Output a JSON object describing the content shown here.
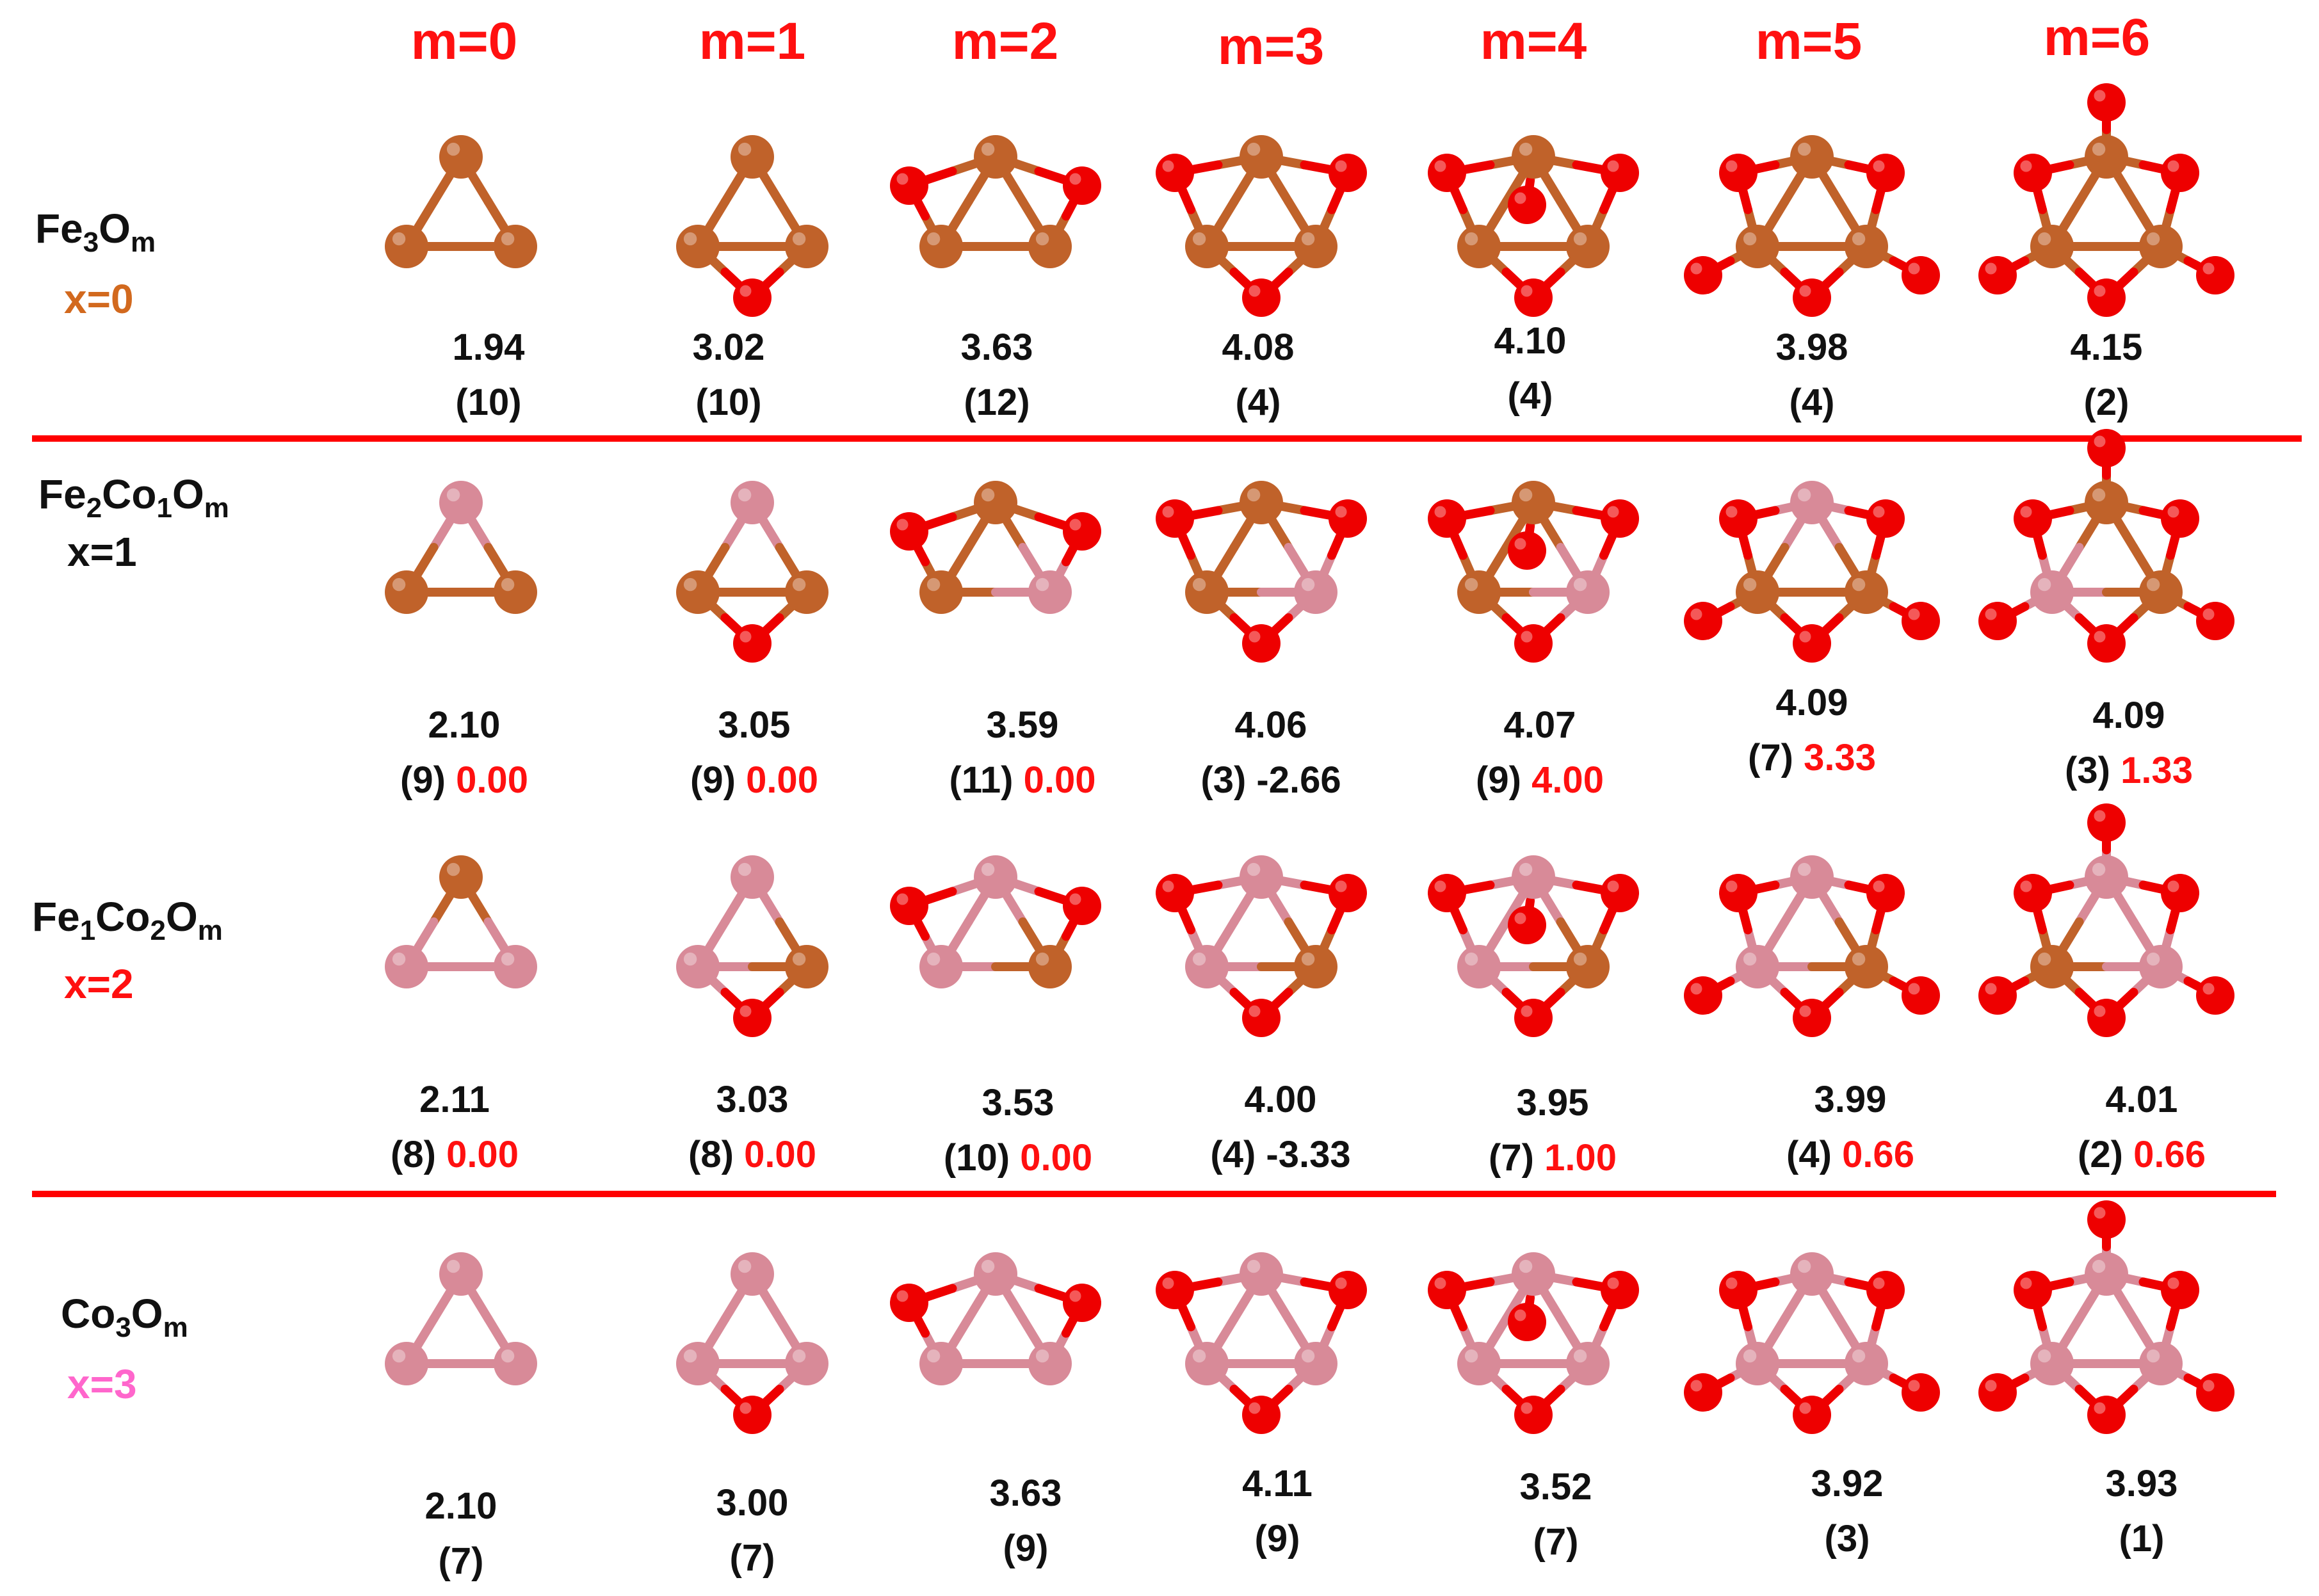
{
  "columns": [
    "m=0",
    "m=1",
    "m=2",
    "m=3",
    "m=4",
    "m=5",
    "m=6"
  ],
  "colors": {
    "label_red": "#ff1010",
    "x0": "#d2691e",
    "x1": "#111111",
    "x2": "#ff1010",
    "x3": "#ff66cc",
    "iron_atom": "#c0622a",
    "cobalt_atom": "#d88a98",
    "oxygen_atom": "#ee0000",
    "separator": "#ff0000"
  },
  "atom_types": {
    "Fe": "iron-atom",
    "Co": "cobalt-atom",
    "O": "oxygen-atom"
  },
  "rows": [
    {
      "formula": {
        "a": "Fe",
        "a_sub": "3",
        "b": "",
        "b_sub": "",
        "c": "O",
        "c_sub": "m"
      },
      "x_label": "x=0",
      "cells": [
        {
          "value": "1.94",
          "sub": "(10)",
          "delta": "",
          "delta_red": false,
          "metals": [
            "Fe",
            "Fe",
            "Fe"
          ]
        },
        {
          "value": "3.02",
          "sub": "(10)",
          "delta": "",
          "delta_red": false,
          "metals": [
            "Fe",
            "Fe",
            "Fe"
          ]
        },
        {
          "value": "3.63",
          "sub": "(12)",
          "delta": "",
          "delta_red": false,
          "metals": [
            "Fe",
            "Fe",
            "Fe"
          ]
        },
        {
          "value": "4.08",
          "sub": "(4)",
          "delta": "",
          "delta_red": false,
          "metals": [
            "Fe",
            "Fe",
            "Fe"
          ]
        },
        {
          "value": "4.10",
          "sub": "(4)",
          "delta": "",
          "delta_red": false,
          "metals": [
            "Fe",
            "Fe",
            "Fe"
          ]
        },
        {
          "value": "3.98",
          "sub": "(4)",
          "delta": "",
          "delta_red": false,
          "metals": [
            "Fe",
            "Fe",
            "Fe"
          ]
        },
        {
          "value": "4.15",
          "sub": "(2)",
          "delta": "",
          "delta_red": false,
          "metals": [
            "Fe",
            "Fe",
            "Fe"
          ]
        }
      ]
    },
    {
      "formula": {
        "a": "Fe",
        "a_sub": "2",
        "b": "Co",
        "b_sub": "1",
        "c": "O",
        "c_sub": "m"
      },
      "x_label": "x=1",
      "cells": [
        {
          "value": "2.10",
          "sub": "(9)",
          "delta": "0.00",
          "delta_red": true,
          "metals": [
            "Co",
            "Fe",
            "Fe"
          ]
        },
        {
          "value": "3.05",
          "sub": "(9)",
          "delta": "0.00",
          "delta_red": true,
          "metals": [
            "Co",
            "Fe",
            "Fe"
          ]
        },
        {
          "value": "3.59",
          "sub": "(11)",
          "delta": "0.00",
          "delta_red": true,
          "metals": [
            "Fe",
            "Fe",
            "Co"
          ]
        },
        {
          "value": "4.06",
          "sub": "(3)",
          "delta": "-2.66",
          "delta_red": false,
          "metals": [
            "Fe",
            "Fe",
            "Co"
          ]
        },
        {
          "value": "4.07",
          "sub": "(9)",
          "delta": "4.00",
          "delta_red": true,
          "metals": [
            "Fe",
            "Fe",
            "Co"
          ]
        },
        {
          "value": "4.09",
          "sub": "(7)",
          "delta": "3.33",
          "delta_red": true,
          "metals": [
            "Co",
            "Fe",
            "Fe"
          ]
        },
        {
          "value": "4.09",
          "sub": "(3)",
          "delta": "1.33",
          "delta_red": true,
          "metals": [
            "Fe",
            "Co",
            "Fe"
          ]
        }
      ]
    },
    {
      "formula": {
        "a": "Fe",
        "a_sub": "1",
        "b": "Co",
        "b_sub": "2",
        "c": "O",
        "c_sub": "m"
      },
      "x_label": "x=2",
      "cells": [
        {
          "value": "2.11",
          "sub": "(8)",
          "delta": "0.00",
          "delta_red": true,
          "metals": [
            "Fe",
            "Co",
            "Co"
          ]
        },
        {
          "value": "3.03",
          "sub": "(8)",
          "delta": "0.00",
          "delta_red": true,
          "metals": [
            "Co",
            "Co",
            "Fe"
          ]
        },
        {
          "value": "3.53",
          "sub": "(10)",
          "delta": "0.00",
          "delta_red": true,
          "metals": [
            "Co",
            "Co",
            "Fe"
          ]
        },
        {
          "value": "4.00",
          "sub": "(4)",
          "delta": "-3.33",
          "delta_red": false,
          "metals": [
            "Co",
            "Co",
            "Fe"
          ]
        },
        {
          "value": "3.95",
          "sub": "(7)",
          "delta": "1.00",
          "delta_red": true,
          "metals": [
            "Co",
            "Co",
            "Fe"
          ]
        },
        {
          "value": "3.99",
          "sub": "(4)",
          "delta": "0.66",
          "delta_red": true,
          "metals": [
            "Co",
            "Co",
            "Fe"
          ]
        },
        {
          "value": "4.01",
          "sub": "(2)",
          "delta": "0.66",
          "delta_red": true,
          "metals": [
            "Co",
            "Fe",
            "Co"
          ]
        }
      ]
    },
    {
      "formula": {
        "a": "Co",
        "a_sub": "3",
        "b": "",
        "b_sub": "",
        "c": "O",
        "c_sub": "m"
      },
      "x_label": "x=3",
      "cells": [
        {
          "value": "2.10",
          "sub": "(7)",
          "delta": "",
          "delta_red": false,
          "metals": [
            "Co",
            "Co",
            "Co"
          ]
        },
        {
          "value": "3.00",
          "sub": "(7)",
          "delta": "",
          "delta_red": false,
          "metals": [
            "Co",
            "Co",
            "Co"
          ]
        },
        {
          "value": "3.63",
          "sub": "(9)",
          "delta": "",
          "delta_red": false,
          "metals": [
            "Co",
            "Co",
            "Co"
          ]
        },
        {
          "value": "4.11",
          "sub": "(9)",
          "delta": "",
          "delta_red": false,
          "metals": [
            "Co",
            "Co",
            "Co"
          ]
        },
        {
          "value": "3.52",
          "sub": "(7)",
          "delta": "",
          "delta_red": false,
          "metals": [
            "Co",
            "Co",
            "Co"
          ]
        },
        {
          "value": "3.92",
          "sub": "(3)",
          "delta": "",
          "delta_red": false,
          "metals": [
            "Co",
            "Co",
            "Co"
          ]
        },
        {
          "value": "3.93",
          "sub": "(1)",
          "delta": "",
          "delta_red": false,
          "metals": [
            "Co",
            "Co",
            "Co"
          ]
        }
      ]
    }
  ]
}
